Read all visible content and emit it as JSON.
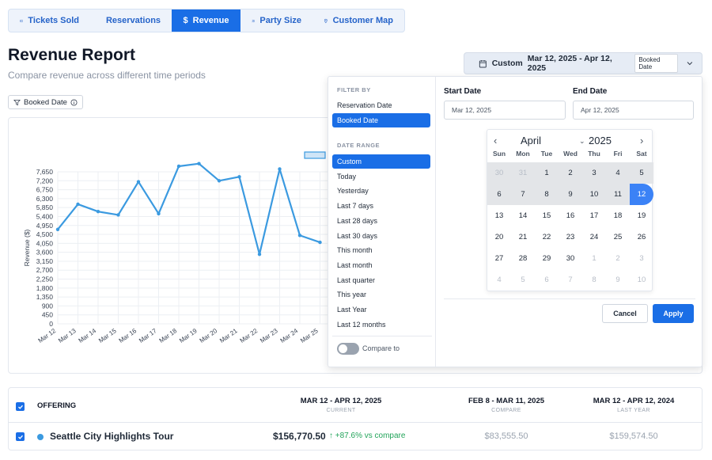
{
  "tabs": [
    {
      "label": "Tickets Sold",
      "icon": "ticket-icon",
      "active": false
    },
    {
      "label": "Reservations",
      "icon": "calendar-check-icon",
      "active": false
    },
    {
      "label": "Revenue",
      "icon": "dollar-icon",
      "active": true
    },
    {
      "label": "Party Size",
      "icon": "people-icon",
      "active": false
    },
    {
      "label": "Customer Map",
      "icon": "map-pin-icon",
      "active": false
    }
  ],
  "header": {
    "title": "Revenue Report",
    "subtitle": "Compare revenue across different time periods"
  },
  "filter_chip": {
    "label": "Booked Date"
  },
  "date_button": {
    "mode": "Custom",
    "range": "Mar 12, 2025 - Apr 12, 2025",
    "badge": "Booked Date"
  },
  "dropdown": {
    "filter_by_label": "FILTER BY",
    "filter_by_options": [
      "Reservation Date",
      "Booked Date"
    ],
    "filter_by_selected": "Booked Date",
    "date_range_label": "DATE RANGE",
    "date_range_options": [
      "Custom",
      "Today",
      "Yesterday",
      "Last 7 days",
      "Last 28 days",
      "Last 30 days",
      "This month",
      "Last month",
      "Last quarter",
      "This year",
      "Last Year",
      "Last 12 months"
    ],
    "date_range_selected": "Custom",
    "compare_label": "Compare to",
    "compare_enabled": false,
    "start_label": "Start Date",
    "start_value": "Mar 12, 2025",
    "end_label": "End Date",
    "end_value": "Apr 12, 2025",
    "cancel_label": "Cancel",
    "apply_label": "Apply"
  },
  "calendar": {
    "month": "April",
    "year": "2025",
    "weekdays": [
      "Sun",
      "Mon",
      "Tue",
      "Wed",
      "Thu",
      "Fri",
      "Sat"
    ],
    "weeks": [
      [
        "30",
        "31",
        "1",
        "2",
        "3",
        "4",
        "5"
      ],
      [
        "6",
        "7",
        "8",
        "9",
        "10",
        "11",
        "12"
      ],
      [
        "13",
        "14",
        "15",
        "16",
        "17",
        "18",
        "19"
      ],
      [
        "20",
        "21",
        "22",
        "23",
        "24",
        "25",
        "26"
      ],
      [
        "27",
        "28",
        "29",
        "30",
        "1",
        "2",
        "3"
      ],
      [
        "4",
        "5",
        "6",
        "7",
        "8",
        "9",
        "10"
      ]
    ],
    "selected_day": "12"
  },
  "chart_data": {
    "type": "line",
    "title": "",
    "xlabel": "",
    "ylabel": "Revenue ($)",
    "ylim": [
      0,
      7650
    ],
    "y_ticks": [
      "0",
      "450",
      "900",
      "1,350",
      "1,800",
      "2,250",
      "2,700",
      "3,150",
      "3,600",
      "4,050",
      "4,500",
      "4,950",
      "5,400",
      "5,850",
      "6,300",
      "6,750",
      "7,200",
      "7,650"
    ],
    "categories": [
      "Mar 12",
      "Mar 13",
      "Mar 14",
      "Mar 15",
      "Mar 16",
      "Mar 17",
      "Mar 18",
      "Mar 19",
      "Mar 20",
      "Mar 21",
      "Mar 22",
      "Mar 23",
      "Mar 24",
      "Mar 25"
    ],
    "series": [
      {
        "name": "",
        "color": "#3b9ae0",
        "values": [
          4750,
          6020,
          5650,
          5480,
          7150,
          5540,
          7930,
          8060,
          7200,
          7400,
          3500,
          7790,
          4450,
          4100
        ]
      }
    ],
    "grid": true
  },
  "table": {
    "header_offering": "OFFERING",
    "columns": [
      {
        "range": "MAR 12 - APR 12, 2025",
        "label": "CURRENT"
      },
      {
        "range": "FEB 8 - MAR 11, 2025",
        "label": "COMPARE"
      },
      {
        "range": "MAR 12 - APR 12, 2024",
        "label": "LAST YEAR"
      }
    ],
    "rows": [
      {
        "name": "Seattle City Highlights Tour",
        "current": "$156,770.50",
        "change": "↑ +87.6% vs compare",
        "compare": "$83,555.50",
        "last_year": "$159,574.50"
      }
    ]
  }
}
